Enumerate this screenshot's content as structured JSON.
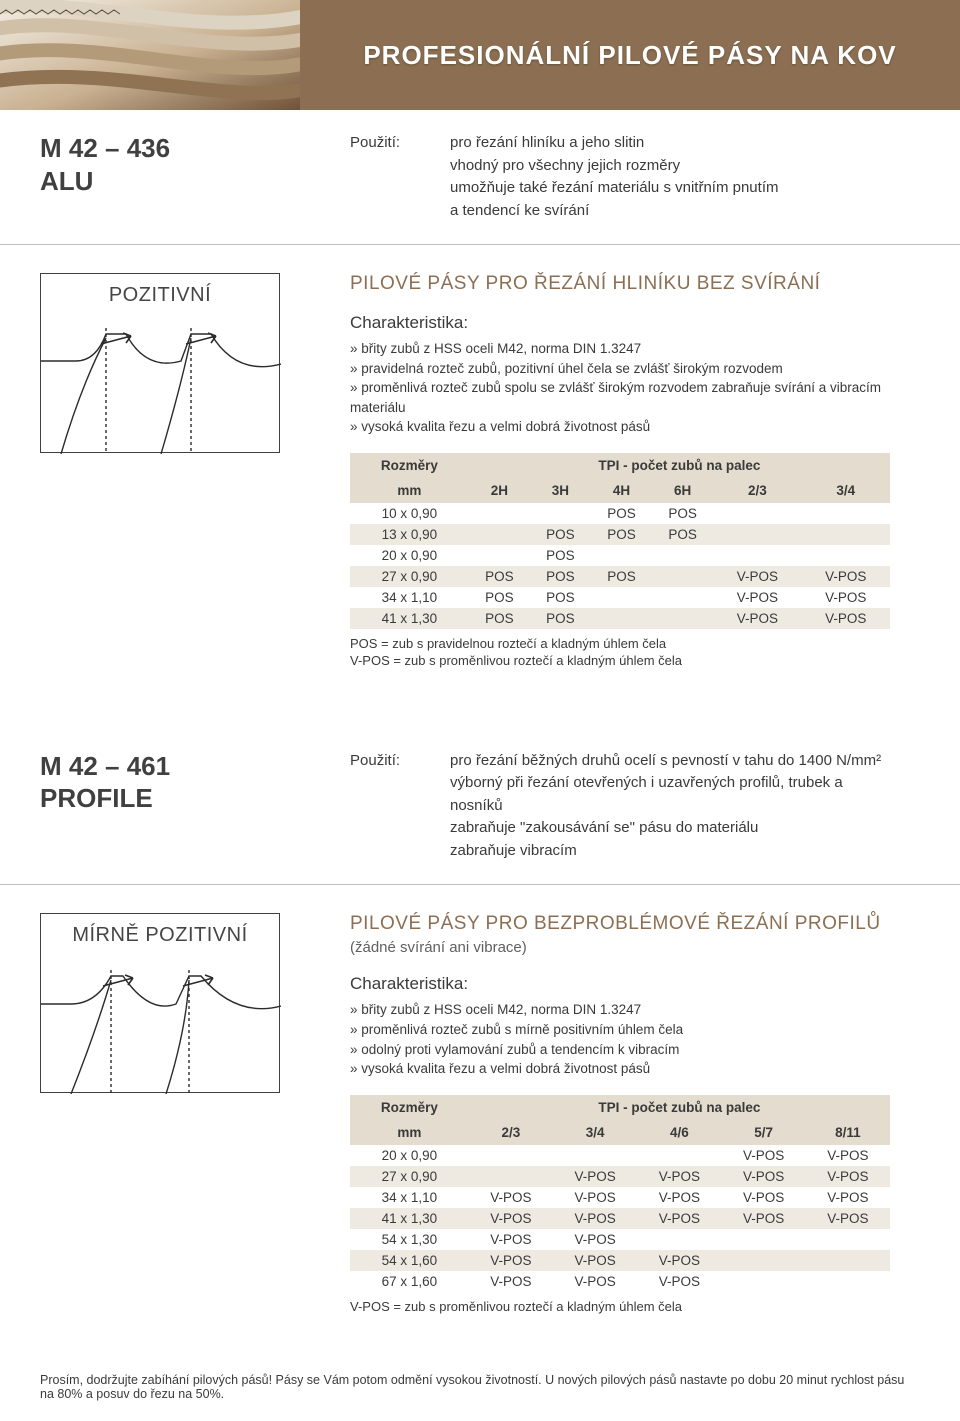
{
  "banner": {
    "title": "PROFESIONÁLNÍ PILOVÉ PÁSY NA KOV",
    "bg_color": "#8c6f52",
    "title_color": "#ffffff"
  },
  "section1": {
    "product_line1": "M 42 – 436",
    "product_line2": "ALU",
    "usage_label": "Použití:",
    "usage_text": "pro řezání hliníku a jeho slitin\nvhodný pro všechny jejich rozměry\numožňuje také řezání materiálu s vnitřním pnutím\na tendencí ke svírání",
    "diagram_label": "POZITIVNÍ",
    "subhead": "PILOVÉ PÁSY PRO ŘEZÁNÍ HLINÍKU BEZ SVÍRÁNÍ",
    "char_title": "Charakteristika:",
    "char_items": [
      "břity zubů z HSS oceli M42, norma DIN 1.3247",
      "pravidelná rozteč zubů, pozitivní úhel čela se zvlášť širokým rozvodem",
      "proměnlivá rozteč zubů spolu se zvlášť širokým rozvodem zabraňuje svírání a vibracím materiálu",
      "vysoká kvalita řezu a velmi dobrá životnost pásů"
    ],
    "table": {
      "header_left": "Rozměry",
      "header_right": "TPI - počet zubů na palec",
      "unit": "mm",
      "cols": [
        "2H",
        "3H",
        "4H",
        "6H",
        "2/3",
        "3/4"
      ],
      "rows": [
        {
          "mm": "10 x 0,90",
          "v": [
            "",
            "",
            "POS",
            "POS",
            "",
            ""
          ]
        },
        {
          "mm": "13 x 0,90",
          "v": [
            "",
            "POS",
            "POS",
            "POS",
            "",
            ""
          ]
        },
        {
          "mm": "20 x 0,90",
          "v": [
            "",
            "POS",
            "",
            "",
            "",
            ""
          ]
        },
        {
          "mm": "27 x 0,90",
          "v": [
            "POS",
            "POS",
            "POS",
            "",
            "V-POS",
            "V-POS"
          ]
        },
        {
          "mm": "34 x 1,10",
          "v": [
            "POS",
            "POS",
            "",
            "",
            "V-POS",
            "V-POS"
          ]
        },
        {
          "mm": "41 x 1,30",
          "v": [
            "POS",
            "POS",
            "",
            "",
            "V-POS",
            "V-POS"
          ]
        }
      ],
      "note1": "POS = zub s pravidelnou roztečí a kladným úhlem čela",
      "note2": "V-POS = zub s proměnlivou roztečí a kladným úhlem čela"
    }
  },
  "section2": {
    "product_line1": "M 42 – 461",
    "product_line2": "PROFILE",
    "usage_label": "Použití:",
    "usage_text": "pro řezání běžných druhů ocelí s pevností v tahu do 1400 N/mm²\nvýborný při řezání otevřených i uzavřených profilů, trubek a nosníků\nzabraňuje \"zakousávání se\" pásu do materiálu\nzabraňuje vibracím",
    "diagram_label": "MÍRNĚ POZITIVNÍ",
    "subhead": "PILOVÉ PÁSY PRO BEZPROBLÉMOVÉ ŘEZÁNÍ PROFILŮ",
    "subhead_note": "(žádné svírání ani vibrace)",
    "char_title": "Charakteristika:",
    "char_items": [
      "břity zubů z HSS oceli M42, norma DIN 1.3247",
      "proměnlivá rozteč zubů s mírně positivním úhlem čela",
      "odolný proti vylamování zubů a tendencím k vibracím",
      "vysoká kvalita řezu a velmi dobrá životnost pásů"
    ],
    "table": {
      "header_left": "Rozměry",
      "header_right": "TPI - počet zubů na palec",
      "unit": "mm",
      "cols": [
        "2/3",
        "3/4",
        "4/6",
        "5/7",
        "8/11"
      ],
      "rows": [
        {
          "mm": "20 x 0,90",
          "v": [
            "",
            "",
            "",
            "V-POS",
            "V-POS"
          ]
        },
        {
          "mm": "27 x 0,90",
          "v": [
            "",
            "V-POS",
            "V-POS",
            "V-POS",
            "V-POS"
          ]
        },
        {
          "mm": "34 x 1,10",
          "v": [
            "V-POS",
            "V-POS",
            "V-POS",
            "V-POS",
            "V-POS"
          ]
        },
        {
          "mm": "41 x 1,30",
          "v": [
            "V-POS",
            "V-POS",
            "V-POS",
            "V-POS",
            "V-POS"
          ]
        },
        {
          "mm": "54 x 1,30",
          "v": [
            "V-POS",
            "V-POS",
            "",
            "",
            ""
          ]
        },
        {
          "mm": "54 x 1,60",
          "v": [
            "V-POS",
            "V-POS",
            "V-POS",
            "",
            ""
          ]
        },
        {
          "mm": "67 x 1,60",
          "v": [
            "V-POS",
            "V-POS",
            "V-POS",
            "",
            ""
          ]
        }
      ],
      "note1": "V-POS = zub s proměnlivou roztečí a kladným úhlem čela"
    }
  },
  "footer": "Prosím, dodržujte zabíhání pilových pásů! Pásy se Vám potom odmění vysokou životností. U nových pilových pásů nastavte po dobu 20 minut rychlost pásu na 80% a posuv do řezu na 50%.",
  "colors": {
    "accent": "#8c6f52",
    "table_header_bg": "#e3dccf",
    "table_stripe_bg": "#eeeae2"
  }
}
